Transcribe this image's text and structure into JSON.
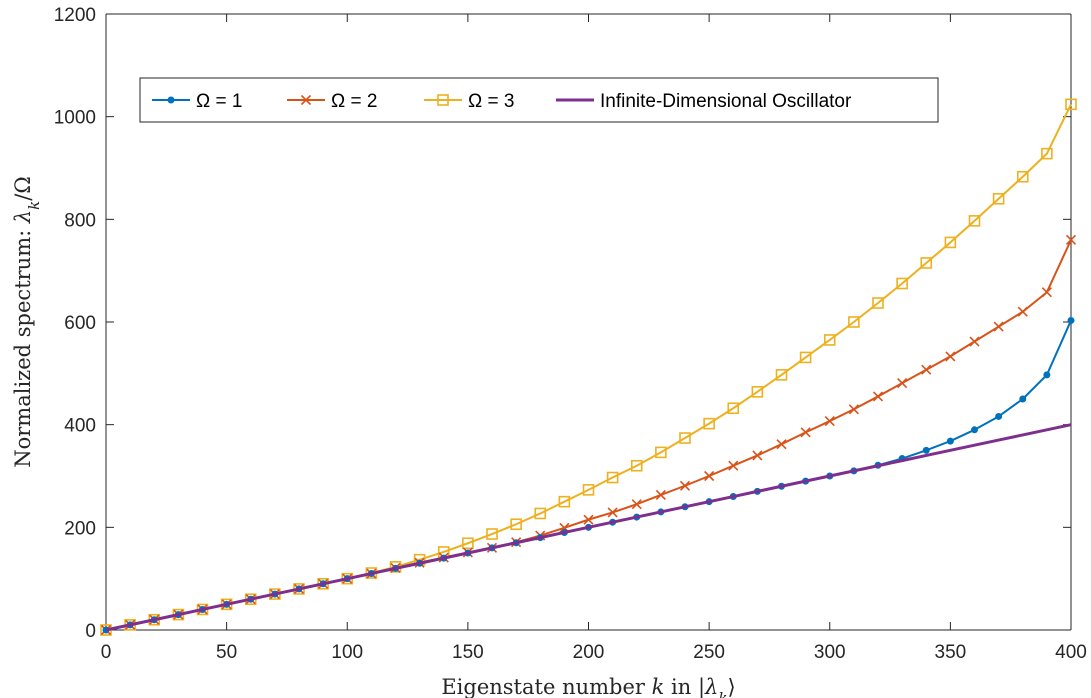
{
  "chart_data": {
    "type": "line",
    "xlabel": "Eigenstate number k in |λ_k⟩",
    "ylabel": "Normalized spectrum: λ_k/Ω",
    "xlabel_parts": [
      {
        "text": "Eigenstate number ",
        "italic": false
      },
      {
        "text": "k",
        "italic": true
      },
      {
        "text": " in |",
        "italic": false
      },
      {
        "text": "λ",
        "italic": true
      },
      {
        "text": "k",
        "italic": true,
        "sub": true
      },
      {
        "text": "⟩",
        "italic": false
      }
    ],
    "ylabel_parts": [
      {
        "text": "Normalized spectrum:  ",
        "italic": false
      },
      {
        "text": "λ",
        "italic": true
      },
      {
        "text": "k",
        "italic": true,
        "sub": true
      },
      {
        "text": "/Ω",
        "italic": false
      }
    ],
    "xlim": [
      0,
      400
    ],
    "ylim": [
      0,
      1200
    ],
    "x_ticks": [
      0,
      50,
      100,
      150,
      200,
      250,
      300,
      350,
      400
    ],
    "y_ticks": [
      0,
      200,
      400,
      600,
      800,
      1000,
      1200
    ],
    "grid": false,
    "legend_position": "top-left",
    "x": [
      0,
      10,
      20,
      30,
      40,
      50,
      60,
      70,
      80,
      90,
      100,
      110,
      120,
      130,
      140,
      150,
      160,
      170,
      180,
      190,
      200,
      210,
      220,
      230,
      240,
      250,
      260,
      270,
      280,
      290,
      300,
      310,
      320,
      330,
      340,
      350,
      360,
      370,
      380,
      390,
      400
    ],
    "series": [
      {
        "name": "Ω = 1",
        "color": "#0072BD",
        "marker": "dot",
        "values": [
          0,
          10,
          20,
          30,
          40,
          50,
          60,
          70,
          80,
          90,
          100,
          110,
          120,
          130,
          140,
          150,
          160,
          170,
          180,
          190,
          200,
          210,
          220,
          230,
          240,
          250,
          260,
          270,
          280,
          290,
          300,
          310,
          321,
          334,
          350,
          368,
          390,
          416,
          450,
          497,
          603
        ]
      },
      {
        "name": "Ω = 2",
        "color": "#D95319",
        "marker": "x",
        "values": [
          0,
          10,
          20,
          30,
          40,
          50,
          60,
          70,
          80,
          90,
          100,
          110,
          121,
          131,
          141,
          151,
          160,
          171,
          184,
          199,
          215,
          229,
          245,
          263,
          281,
          300,
          320,
          340,
          362,
          385,
          407,
          430,
          455,
          481,
          507,
          533,
          562,
          591,
          620,
          658,
          760
        ]
      },
      {
        "name": "Ω = 3",
        "color": "#EDB120",
        "marker": "square",
        "values": [
          0,
          10,
          20,
          30,
          40,
          50,
          60,
          70,
          80,
          90,
          100,
          111,
          123,
          137,
          152,
          169,
          187,
          206,
          227,
          250,
          273,
          297,
          320,
          346,
          374,
          402,
          432,
          464,
          497,
          531,
          565,
          600,
          637,
          675,
          715,
          755,
          797,
          840,
          883,
          928,
          1024
        ]
      },
      {
        "name": "Infinite-Dimensional Oscillator",
        "color": "#7E2F8E",
        "marker": "none",
        "values": [
          0,
          10,
          20,
          30,
          40,
          50,
          60,
          70,
          80,
          90,
          100,
          110,
          120,
          130,
          140,
          150,
          160,
          170,
          180,
          190,
          200,
          210,
          220,
          230,
          240,
          250,
          260,
          270,
          280,
          290,
          300,
          310,
          320,
          330,
          340,
          350,
          360,
          370,
          380,
          390,
          400
        ]
      }
    ]
  }
}
